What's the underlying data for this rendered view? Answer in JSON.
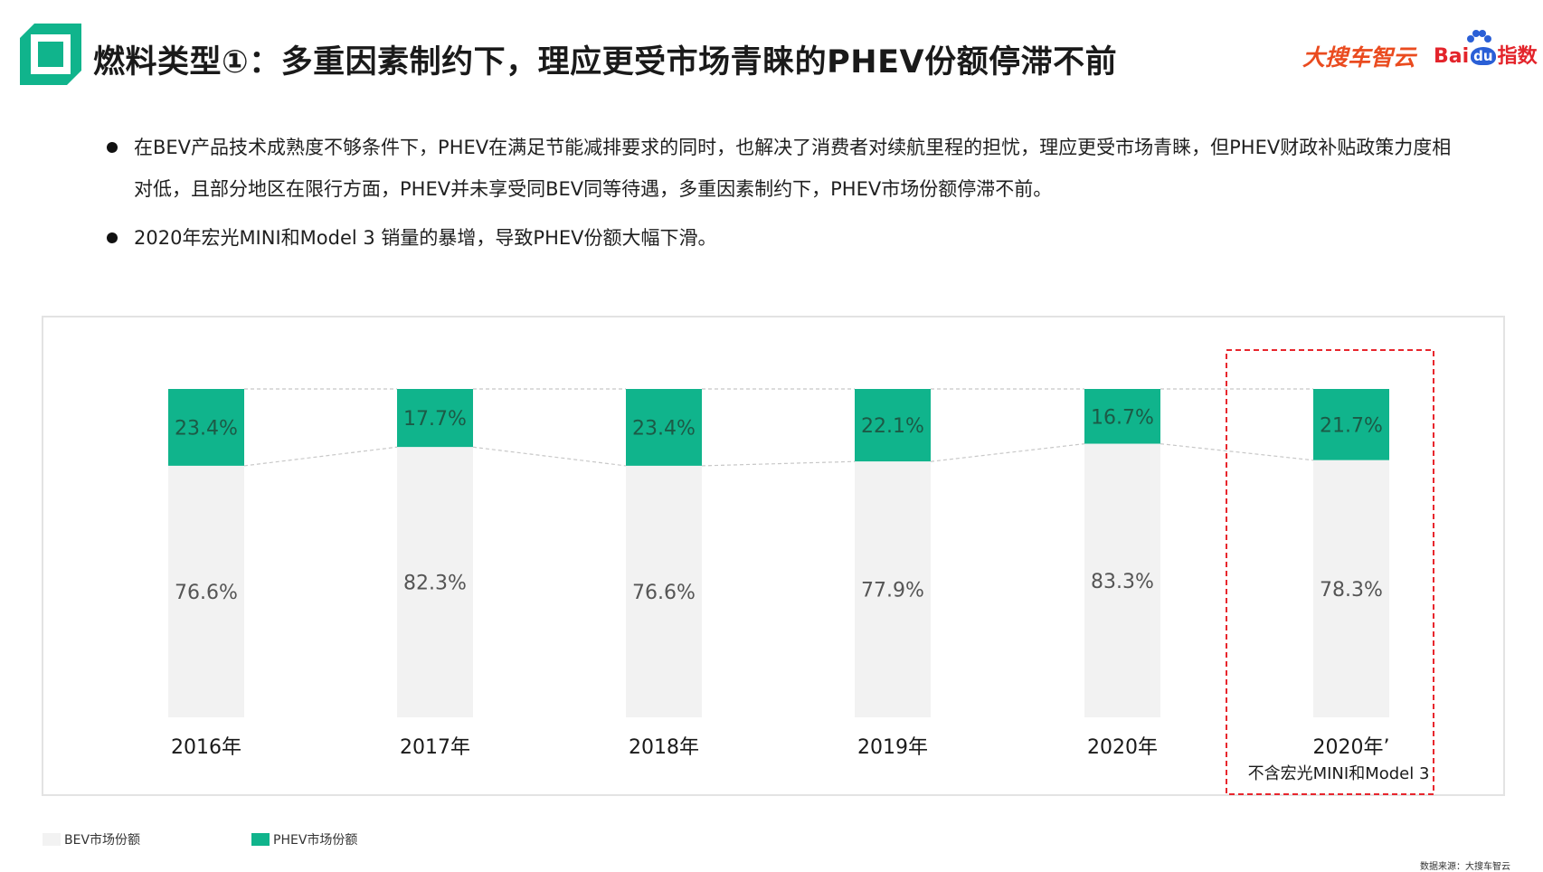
{
  "header": {
    "title": "燃料类型①：多重因素制约下，理应更受市场青睐的PHEV份额停滞不前",
    "brand_primary": "大搜车智云",
    "brand_secondary_prefix": "Bai",
    "brand_secondary_du": "du",
    "brand_secondary_suffix": "指数"
  },
  "bullets": [
    "在BEV产品技术成熟度不够条件下，PHEV在满足节能减排要求的同时，也解决了消费者对续航里程的担忧，理应更受市场青睐，但PHEV财政补贴政策力度相对低，且部分地区在限行方面，PHEV并未享受同BEV同等待遇，多重因素制约下，PHEV市场份额停滞不前。",
    "2020年宏光MINI和Model 3 销量的暴增，导致PHEV份额大幅下滑。"
  ],
  "chart_data": {
    "type": "bar",
    "stacked": true,
    "categories": [
      "2016年",
      "2017年",
      "2018年",
      "2019年",
      "2020年",
      "2020年’"
    ],
    "category_notes": [
      "",
      "",
      "",
      "",
      "",
      "不含宏光MINI和Model 3"
    ],
    "series": [
      {
        "name": "BEV市场份额",
        "color": "#f2f2f2",
        "values": [
          76.6,
          82.3,
          76.6,
          77.9,
          83.3,
          78.3
        ]
      },
      {
        "name": "PHEV市场份额",
        "color": "#10b48c",
        "values": [
          23.4,
          17.7,
          23.4,
          22.1,
          16.7,
          21.7
        ]
      }
    ],
    "value_labels": {
      "BEV市场份额": [
        "76.6%",
        "82.3%",
        "76.6%",
        "77.9%",
        "83.3%",
        "78.3%"
      ],
      "PHEV市场份额": [
        "23.4%",
        "17.7%",
        "23.4%",
        "22.1%",
        "16.7%",
        "21.7%"
      ]
    },
    "ylim": [
      0,
      100
    ],
    "highlighted_category": "2020年’",
    "highlight_color": "#e8262d",
    "connector_lines": true,
    "grid": false,
    "legend_position": "bottom-left"
  },
  "legend": {
    "items": [
      {
        "label": "BEV市场份额",
        "color": "#f2f2f2"
      },
      {
        "label": "PHEV市场份额",
        "color": "#10b48c"
      }
    ]
  },
  "footer": {
    "source": "数据来源：大搜车智云"
  },
  "colors": {
    "accent": "#10b48c",
    "brand_orange": "#ea4b1f",
    "baidu_red": "#e3242b",
    "baidu_blue": "#2a5fd6"
  }
}
